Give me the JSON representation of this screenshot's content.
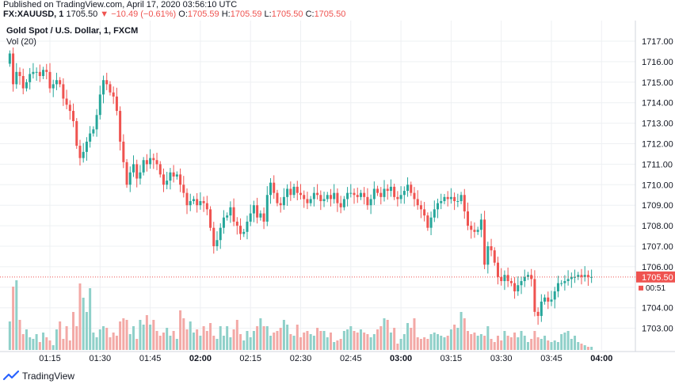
{
  "header": {
    "published": "Published on TradingView.com, April 17, 2020 03:56:10 UTC",
    "symbol": "FX:XAUUSD, 1",
    "last": "1705.50",
    "change": "−10.49 (−0.61%)",
    "o_label": "O:",
    "o_value": "1705.59",
    "h_label": "H:",
    "h_value": "1705.59",
    "l_label": "L:",
    "l_value": "1705.50",
    "c_label": "C:",
    "c_value": "1705.50"
  },
  "footer": {
    "brand": "TradingView"
  },
  "colors": {
    "up": "#26a69a",
    "down": "#ef5350",
    "vol_up": "#8fd0c9",
    "vol_down": "#f3a9a6",
    "grid": "#eef0f3",
    "axis_text": "#131722"
  },
  "chart_data": {
    "type": "candlestick",
    "title": "Gold Spot / U.S. Dollar, 1, FXCM",
    "indicator": "Vol (20)",
    "y_ticks": [
      "1717.00",
      "1716.00",
      "1715.00",
      "1714.00",
      "1713.00",
      "1712.00",
      "1711.00",
      "1710.00",
      "1709.00",
      "1708.00",
      "1707.00",
      "1706.00",
      "1705.00",
      "1704.00",
      "1703.00"
    ],
    "ylim": [
      1702.3,
      1717.6
    ],
    "x_ticks": [
      {
        "t": 15,
        "label": "01:15",
        "bold": false
      },
      {
        "t": 30,
        "label": "01:30",
        "bold": false
      },
      {
        "t": 45,
        "label": "01:45",
        "bold": false
      },
      {
        "t": 60,
        "label": "02:00",
        "bold": true
      },
      {
        "t": 75,
        "label": "02:15",
        "bold": false
      },
      {
        "t": 90,
        "label": "02:30",
        "bold": false
      },
      {
        "t": 105,
        "label": "02:45",
        "bold": false
      },
      {
        "t": 120,
        "label": "03:00",
        "bold": true
      },
      {
        "t": 135,
        "label": "03:15",
        "bold": false
      },
      {
        "t": 150,
        "label": "03:30",
        "bold": false
      },
      {
        "t": 165,
        "label": "03:45",
        "bold": false
      },
      {
        "t": 180,
        "label": "04:00",
        "bold": true
      }
    ],
    "last_price_label": "1705.50",
    "countdown_label": "00:51",
    "last_price": 1705.5,
    "closes": [
      1716.4,
      1714.9,
      1715.5,
      1715.3,
      1714.7,
      1715.0,
      1715.4,
      1715.5,
      1715.5,
      1715.3,
      1715.6,
      1715.5,
      1714.7,
      1714.9,
      1715.1,
      1714.9,
      1714.2,
      1713.9,
      1713.6,
      1713.1,
      1711.9,
      1711.3,
      1711.6,
      1712.1,
      1712.5,
      1712.7,
      1713.4,
      1714.4,
      1715.1,
      1714.9,
      1714.5,
      1714.3,
      1713.6,
      1712.1,
      1711.1,
      1710.0,
      1710.6,
      1711.0,
      1710.3,
      1710.6,
      1711.2,
      1711.0,
      1711.3,
      1711.2,
      1711.0,
      1710.5,
      1710.0,
      1710.2,
      1710.6,
      1710.4,
      1710.5,
      1710.0,
      1709.6,
      1709.0,
      1709.2,
      1709.3,
      1709.0,
      1709.2,
      1709.1,
      1708.8,
      1707.9,
      1707.0,
      1707.3,
      1707.9,
      1708.4,
      1708.5,
      1708.9,
      1708.2,
      1708.0,
      1707.6,
      1707.7,
      1708.2,
      1708.6,
      1709.0,
      1708.4,
      1708.6,
      1708.2,
      1709.5,
      1710.1,
      1709.6,
      1709.1,
      1709.0,
      1709.4,
      1709.8,
      1709.5,
      1709.9,
      1709.6,
      1709.5,
      1709.3,
      1709.1,
      1709.3,
      1709.6,
      1709.5,
      1709.2,
      1709.3,
      1709.5,
      1709.3,
      1709.6,
      1709.1,
      1708.9,
      1709.3,
      1709.6,
      1709.6,
      1709.5,
      1709.4,
      1709.6,
      1709.4,
      1709.0,
      1709.3,
      1709.8,
      1709.6,
      1709.4,
      1709.8,
      1709.7,
      1709.9,
      1709.4,
      1709.3,
      1709.5,
      1709.7,
      1710.0,
      1709.6,
      1709.3,
      1709.0,
      1708.8,
      1708.5,
      1707.9,
      1708.4,
      1708.8,
      1709.1,
      1709.2,
      1709.4,
      1709.3,
      1709.4,
      1709.2,
      1709.2,
      1709.5,
      1708.7,
      1708.0,
      1707.8,
      1707.7,
      1707.8,
      1708.3,
      1706.1,
      1707.0,
      1706.8,
      1706.2,
      1705.5,
      1705.3,
      1705.6,
      1705.3,
      1705.2,
      1704.8,
      1705.1,
      1705.3,
      1705.5,
      1705.6,
      1705.4,
      1703.8,
      1703.6,
      1704.3,
      1704.5,
      1704.3,
      1704.4,
      1704.8,
      1705.2,
      1705.2,
      1705.3,
      1705.4,
      1705.5,
      1705.5,
      1705.6,
      1705.5,
      1705.6,
      1705.5,
      1705.5
    ],
    "volumes": [
      18,
      40,
      44,
      19,
      10,
      13,
      8,
      7,
      10,
      5,
      11,
      8,
      6,
      3,
      13,
      18,
      7,
      15,
      6,
      24,
      15,
      42,
      33,
      24,
      39,
      11,
      8,
      13,
      15,
      14,
      8,
      11,
      9,
      18,
      20,
      19,
      10,
      15,
      7,
      19,
      16,
      22,
      16,
      19,
      12,
      9,
      11,
      14,
      9,
      12,
      7,
      25,
      20,
      13,
      18,
      11,
      13,
      9,
      15,
      12,
      17,
      9,
      7,
      15,
      9,
      15,
      8,
      13,
      19,
      10,
      6,
      12,
      8,
      12,
      15,
      20,
      15,
      15,
      9,
      11,
      12,
      14,
      19,
      16,
      10,
      9,
      16,
      8,
      11,
      12,
      10,
      9,
      14,
      12,
      12,
      8,
      11,
      5,
      6,
      7,
      12,
      13,
      15,
      12,
      11,
      13,
      11,
      10,
      8,
      10,
      13,
      15,
      20,
      19,
      11,
      14,
      4,
      7,
      10,
      17,
      14,
      20,
      8,
      7,
      8,
      7,
      10,
      11,
      10,
      9,
      8,
      9,
      13,
      16,
      14,
      24,
      20,
      12,
      10,
      11,
      9,
      10,
      9,
      15,
      7,
      5,
      9,
      6,
      12,
      9,
      8,
      11,
      8,
      12,
      9,
      5,
      7,
      12,
      8,
      7,
      9,
      6,
      5,
      6,
      5,
      10,
      11,
      12,
      7,
      9,
      5,
      4,
      3,
      2,
      2,
      1,
      1,
      1,
      1,
      1
    ]
  }
}
